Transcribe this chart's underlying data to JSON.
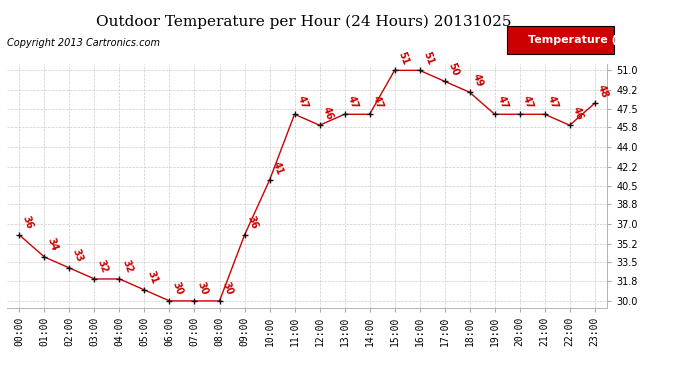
{
  "title": "Outdoor Temperature per Hour (24 Hours) 20131025",
  "copyright": "Copyright 2013 Cartronics.com",
  "legend_label": "Temperature (°F)",
  "hours": [
    0,
    1,
    2,
    3,
    4,
    5,
    6,
    7,
    8,
    9,
    10,
    11,
    12,
    13,
    14,
    15,
    16,
    17,
    18,
    19,
    20,
    21,
    22,
    23
  ],
  "x_labels": [
    "00:00",
    "01:00",
    "02:00",
    "03:00",
    "04:00",
    "05:00",
    "06:00",
    "07:00",
    "08:00",
    "09:00",
    "10:00",
    "11:00",
    "12:00",
    "13:00",
    "14:00",
    "15:00",
    "16:00",
    "17:00",
    "18:00",
    "19:00",
    "20:00",
    "21:00",
    "22:00",
    "23:00"
  ],
  "temps": [
    36,
    34,
    33,
    32,
    32,
    31,
    30,
    30,
    30,
    36,
    41,
    47,
    46,
    47,
    47,
    51,
    51,
    50,
    49,
    47,
    47,
    47,
    46,
    48
  ],
  "y_ticks": [
    30.0,
    31.8,
    33.5,
    35.2,
    37.0,
    38.8,
    40.5,
    42.2,
    44.0,
    45.8,
    47.5,
    49.2,
    51.0
  ],
  "ylim": [
    29.4,
    51.6
  ],
  "xlim": [
    -0.5,
    23.5
  ],
  "line_color": "#cc0000",
  "marker_color": "#111111",
  "bg_color": "#ffffff",
  "grid_color": "#cccccc",
  "title_fontsize": 11,
  "copyright_fontsize": 7,
  "annot_fontsize": 7,
  "tick_fontsize": 7,
  "ytick_fontsize": 7,
  "legend_bg": "#cc0000",
  "legend_fg": "#ffffff",
  "legend_fontsize": 8
}
